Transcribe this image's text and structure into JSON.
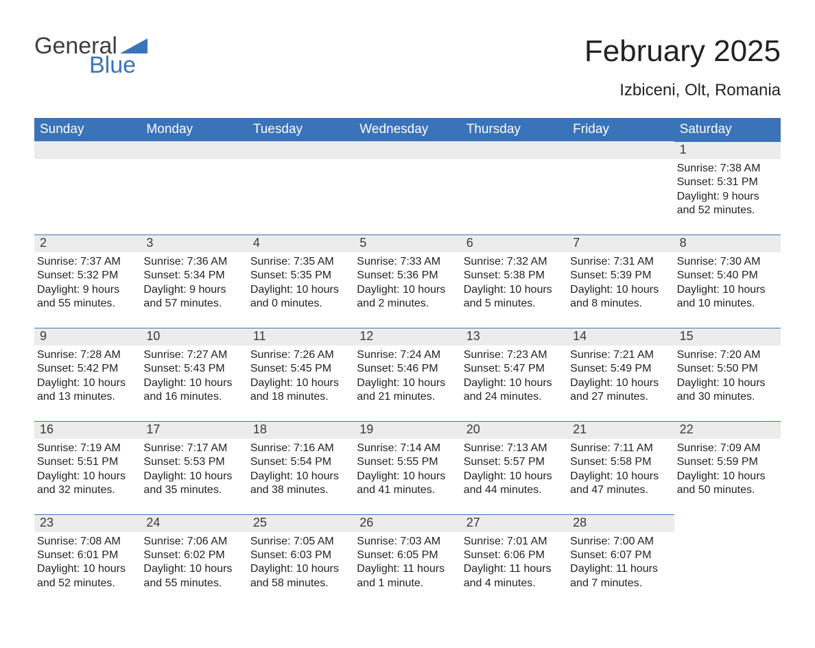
{
  "logo": {
    "word1": "General",
    "word2": "Blue"
  },
  "title": "February 2025",
  "location": "Izbiceni, Olt, Romania",
  "colors": {
    "header_bg": "#3b73b9",
    "header_text": "#ffffff",
    "daynum_bg": "#ececec",
    "daynum_border": "#3b73b9",
    "body_text": "#222222",
    "page_bg": "#ffffff",
    "logo_gray": "#3f3f3f",
    "logo_blue": "#3b73b9"
  },
  "layout": {
    "grid_columns": 7,
    "first_day_column": 6,
    "num_days": 28
  },
  "weekdays": [
    "Sunday",
    "Monday",
    "Tuesday",
    "Wednesday",
    "Thursday",
    "Friday",
    "Saturday"
  ],
  "days": [
    {
      "n": 1,
      "sunrise": "7:38 AM",
      "sunset": "5:31 PM",
      "daylight": "9 hours and 52 minutes."
    },
    {
      "n": 2,
      "sunrise": "7:37 AM",
      "sunset": "5:32 PM",
      "daylight": "9 hours and 55 minutes."
    },
    {
      "n": 3,
      "sunrise": "7:36 AM",
      "sunset": "5:34 PM",
      "daylight": "9 hours and 57 minutes."
    },
    {
      "n": 4,
      "sunrise": "7:35 AM",
      "sunset": "5:35 PM",
      "daylight": "10 hours and 0 minutes."
    },
    {
      "n": 5,
      "sunrise": "7:33 AM",
      "sunset": "5:36 PM",
      "daylight": "10 hours and 2 minutes."
    },
    {
      "n": 6,
      "sunrise": "7:32 AM",
      "sunset": "5:38 PM",
      "daylight": "10 hours and 5 minutes."
    },
    {
      "n": 7,
      "sunrise": "7:31 AM",
      "sunset": "5:39 PM",
      "daylight": "10 hours and 8 minutes."
    },
    {
      "n": 8,
      "sunrise": "7:30 AM",
      "sunset": "5:40 PM",
      "daylight": "10 hours and 10 minutes."
    },
    {
      "n": 9,
      "sunrise": "7:28 AM",
      "sunset": "5:42 PM",
      "daylight": "10 hours and 13 minutes."
    },
    {
      "n": 10,
      "sunrise": "7:27 AM",
      "sunset": "5:43 PM",
      "daylight": "10 hours and 16 minutes."
    },
    {
      "n": 11,
      "sunrise": "7:26 AM",
      "sunset": "5:45 PM",
      "daylight": "10 hours and 18 minutes."
    },
    {
      "n": 12,
      "sunrise": "7:24 AM",
      "sunset": "5:46 PM",
      "daylight": "10 hours and 21 minutes."
    },
    {
      "n": 13,
      "sunrise": "7:23 AM",
      "sunset": "5:47 PM",
      "daylight": "10 hours and 24 minutes."
    },
    {
      "n": 14,
      "sunrise": "7:21 AM",
      "sunset": "5:49 PM",
      "daylight": "10 hours and 27 minutes."
    },
    {
      "n": 15,
      "sunrise": "7:20 AM",
      "sunset": "5:50 PM",
      "daylight": "10 hours and 30 minutes."
    },
    {
      "n": 16,
      "sunrise": "7:19 AM",
      "sunset": "5:51 PM",
      "daylight": "10 hours and 32 minutes."
    },
    {
      "n": 17,
      "sunrise": "7:17 AM",
      "sunset": "5:53 PM",
      "daylight": "10 hours and 35 minutes."
    },
    {
      "n": 18,
      "sunrise": "7:16 AM",
      "sunset": "5:54 PM",
      "daylight": "10 hours and 38 minutes."
    },
    {
      "n": 19,
      "sunrise": "7:14 AM",
      "sunset": "5:55 PM",
      "daylight": "10 hours and 41 minutes."
    },
    {
      "n": 20,
      "sunrise": "7:13 AM",
      "sunset": "5:57 PM",
      "daylight": "10 hours and 44 minutes."
    },
    {
      "n": 21,
      "sunrise": "7:11 AM",
      "sunset": "5:58 PM",
      "daylight": "10 hours and 47 minutes."
    },
    {
      "n": 22,
      "sunrise": "7:09 AM",
      "sunset": "5:59 PM",
      "daylight": "10 hours and 50 minutes."
    },
    {
      "n": 23,
      "sunrise": "7:08 AM",
      "sunset": "6:01 PM",
      "daylight": "10 hours and 52 minutes."
    },
    {
      "n": 24,
      "sunrise": "7:06 AM",
      "sunset": "6:02 PM",
      "daylight": "10 hours and 55 minutes."
    },
    {
      "n": 25,
      "sunrise": "7:05 AM",
      "sunset": "6:03 PM",
      "daylight": "10 hours and 58 minutes."
    },
    {
      "n": 26,
      "sunrise": "7:03 AM",
      "sunset": "6:05 PM",
      "daylight": "11 hours and 1 minute."
    },
    {
      "n": 27,
      "sunrise": "7:01 AM",
      "sunset": "6:06 PM",
      "daylight": "11 hours and 4 minutes."
    },
    {
      "n": 28,
      "sunrise": "7:00 AM",
      "sunset": "6:07 PM",
      "daylight": "11 hours and 7 minutes."
    }
  ],
  "labels": {
    "sunrise": "Sunrise",
    "sunset": "Sunset",
    "daylight": "Daylight"
  }
}
